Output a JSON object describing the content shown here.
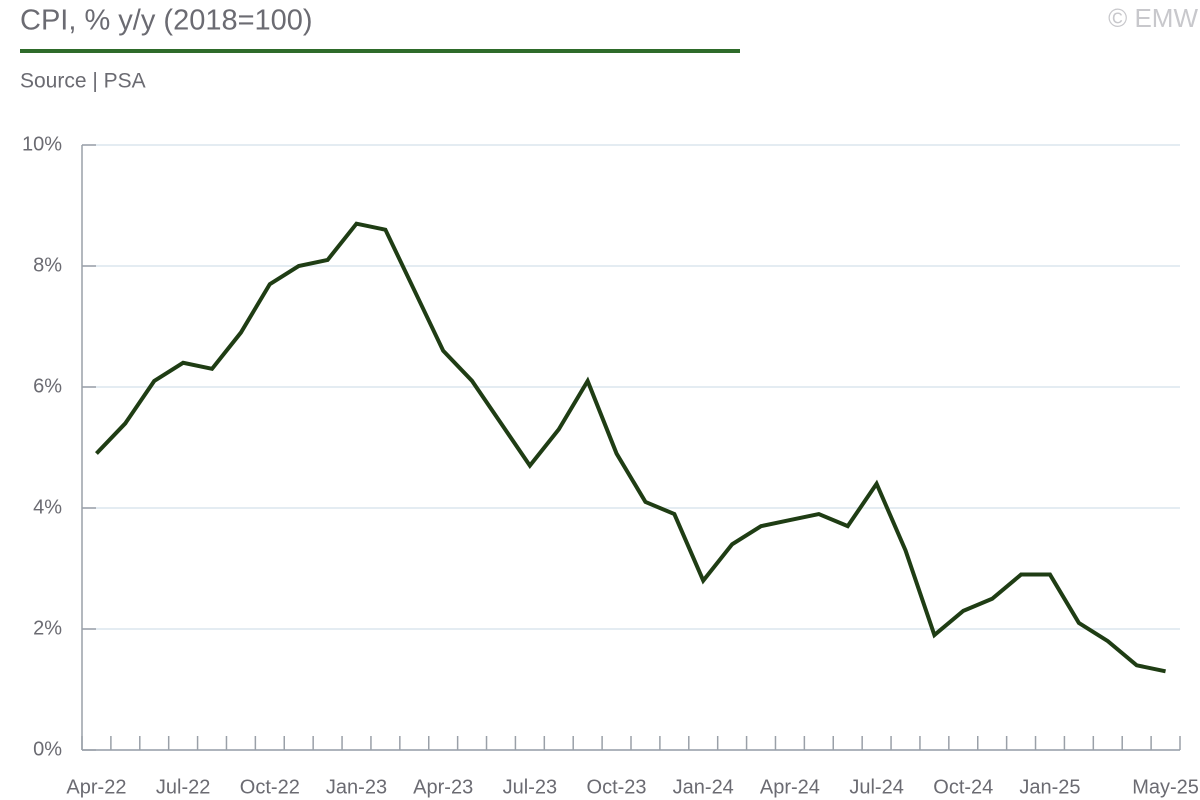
{
  "chart_data": {
    "type": "line",
    "title": "CPI, % y/y (2018=100)",
    "subtitle": "Source | PSA",
    "watermark": "© EMW",
    "categories": [
      "Apr-22",
      null,
      null,
      "Jul-22",
      null,
      null,
      "Oct-22",
      null,
      null,
      "Jan-23",
      null,
      null,
      "Apr-23",
      null,
      null,
      "Jul-23",
      null,
      null,
      "Oct-23",
      null,
      null,
      "Jan-24",
      null,
      null,
      "Apr-24",
      null,
      null,
      "Jul-24",
      null,
      null,
      "Oct-24",
      null,
      null,
      "Jan-25",
      null,
      null,
      null,
      "May-25"
    ],
    "series": [
      {
        "color": "#1f3d14",
        "values": [
          4.9,
          5.4,
          6.1,
          6.4,
          6.3,
          6.9,
          7.7,
          8.0,
          8.1,
          8.7,
          8.6,
          7.6,
          6.6,
          6.1,
          5.4,
          4.7,
          5.3,
          6.1,
          4.9,
          4.1,
          3.9,
          2.8,
          3.4,
          3.7,
          3.8,
          3.9,
          3.7,
          4.4,
          3.3,
          1.9,
          2.3,
          2.5,
          2.9,
          2.9,
          2.1,
          1.8,
          1.4,
          1.3
        ]
      }
    ],
    "ylim": [
      0,
      10
    ],
    "yticks": [
      {
        "value": 0,
        "label": "0%"
      },
      {
        "value": 2,
        "label": "2%"
      },
      {
        "value": 4,
        "label": "4%"
      },
      {
        "value": 6,
        "label": "6%"
      },
      {
        "value": 8,
        "label": "8%"
      },
      {
        "value": 10,
        "label": "10%"
      }
    ],
    "grid": true
  }
}
